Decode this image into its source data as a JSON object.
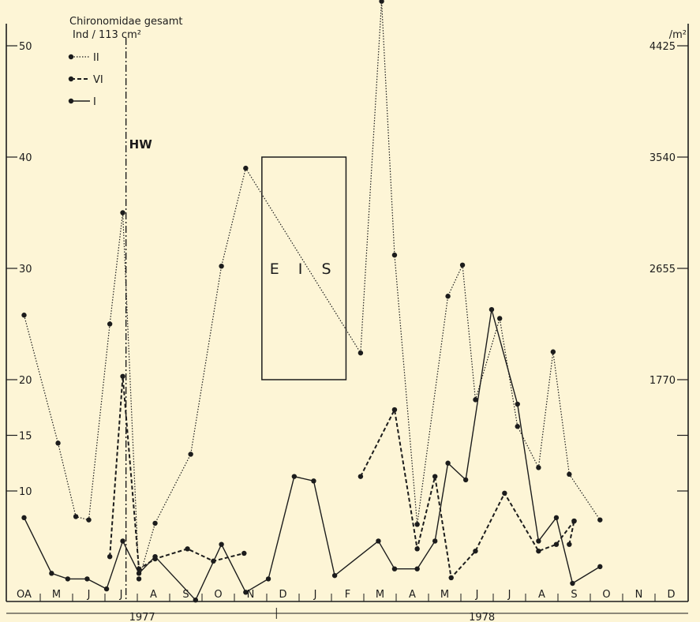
{
  "chart_data": {
    "type": "line",
    "title": "Chironomidae gesamt",
    "ylabel_left": "Ind / 113 cm²",
    "ylabel_right": "/m²",
    "ylim": [
      0,
      52
    ],
    "y_ticks_left": [
      {
        "value": 10,
        "label": "10"
      },
      {
        "value": 15,
        "label": "15"
      },
      {
        "value": 20,
        "label": "20"
      },
      {
        "value": 30,
        "label": "30"
      },
      {
        "value": 40,
        "label": "40"
      },
      {
        "value": 50,
        "label": "50"
      }
    ],
    "y_ticks_right": [
      {
        "value": 20,
        "label": "1770"
      },
      {
        "value": 30,
        "label": "2655"
      },
      {
        "value": 40,
        "label": "3540"
      },
      {
        "value": 50,
        "label": "4425"
      }
    ],
    "months": [
      "OA",
      "M",
      "J",
      "J",
      "A",
      "S",
      "O",
      "N",
      "D",
      "J",
      "F",
      "M",
      "A",
      "M",
      "J",
      "J",
      "A",
      "S",
      "O",
      "N",
      "D"
    ],
    "years": [
      {
        "label": "1977",
        "from": 0,
        "to": 8.3
      },
      {
        "label": "1978",
        "from": 8.3,
        "to": 21
      }
    ],
    "annotations": {
      "hw_label": "HW",
      "hw_x": 3.65,
      "eis_label": "EIS",
      "eis_x_range": [
        7.85,
        10.45
      ],
      "eis_y_range": [
        20,
        40
      ]
    },
    "legend": [
      {
        "label": "II",
        "style": "dotted"
      },
      {
        "label": "VI",
        "style": "dashed"
      },
      {
        "label": "I",
        "style": "solid"
      }
    ],
    "series": [
      {
        "name": "II",
        "style": "dotted",
        "points": [
          [
            0.5,
            25.8
          ],
          [
            1.55,
            14.3
          ],
          [
            2.1,
            7.7
          ],
          [
            2.5,
            7.4
          ],
          [
            3.15,
            25
          ],
          [
            3.55,
            35
          ],
          [
            4.05,
            2.1
          ],
          [
            4.55,
            7.1
          ],
          [
            5.65,
            13.3
          ],
          [
            6.6,
            30.2
          ],
          [
            7.35,
            39
          ],
          [
            10.9,
            22.4
          ],
          [
            11.55,
            54
          ],
          [
            11.95,
            31.2
          ],
          [
            12.65,
            7
          ],
          [
            13.6,
            27.5
          ],
          [
            14.05,
            30.3
          ],
          [
            14.45,
            18.2
          ],
          [
            15.2,
            25.5
          ],
          [
            15.75,
            15.8
          ],
          [
            16.4,
            12.1
          ],
          [
            16.85,
            22.5
          ],
          [
            17.35,
            11.5
          ],
          [
            18.3,
            7.4
          ]
        ]
      },
      {
        "name": "VI",
        "style": "dashed",
        "points": [
          [
            3.15,
            4.1
          ],
          [
            3.55,
            20.3
          ],
          [
            4.05,
            3.0
          ],
          [
            4.55,
            3.9
          ],
          [
            5.55,
            4.8
          ],
          [
            6.35,
            3.7
          ],
          [
            7.3,
            4.4
          ]
        ]
      },
      {
        "name": "VI",
        "style": "dashed",
        "points": [
          [
            10.9,
            11.3
          ],
          [
            11.95,
            17.3
          ],
          [
            12.65,
            4.8
          ],
          [
            13.2,
            11.3
          ],
          [
            13.7,
            2.2
          ],
          [
            14.45,
            4.6
          ],
          [
            15.35,
            9.8
          ],
          [
            16.4,
            4.6
          ],
          [
            16.95,
            5.2
          ],
          [
            17.5,
            7.3
          ]
        ]
      },
      {
        "name": "VI",
        "style": "dashed",
        "points": [
          [
            17.35,
            5.2
          ],
          [
            17.5,
            7.3
          ]
        ]
      },
      {
        "name": "I",
        "style": "solid",
        "points": [
          [
            0.5,
            7.6
          ],
          [
            1.35,
            2.6
          ],
          [
            1.85,
            2.1
          ],
          [
            2.45,
            2.1
          ],
          [
            3.05,
            1.2
          ],
          [
            3.55,
            5.5
          ],
          [
            4.05,
            2.6
          ],
          [
            4.55,
            4.1
          ],
          [
            5.8,
            0.2
          ],
          [
            6.6,
            5.2
          ],
          [
            7.35,
            0.9
          ],
          [
            8.05,
            2.1
          ],
          [
            8.85,
            11.3
          ],
          [
            9.45,
            10.9
          ],
          [
            10.1,
            2.4
          ],
          [
            11.45,
            5.5
          ],
          [
            11.95,
            3
          ],
          [
            12.65,
            3
          ],
          [
            13.2,
            5.5
          ],
          [
            13.6,
            12.5
          ],
          [
            14.15,
            11
          ],
          [
            14.95,
            26.3
          ],
          [
            15.75,
            17.8
          ],
          [
            16.4,
            5.5
          ],
          [
            16.95,
            7.6
          ],
          [
            17.45,
            1.7
          ],
          [
            18.3,
            3.2
          ]
        ]
      }
    ]
  }
}
